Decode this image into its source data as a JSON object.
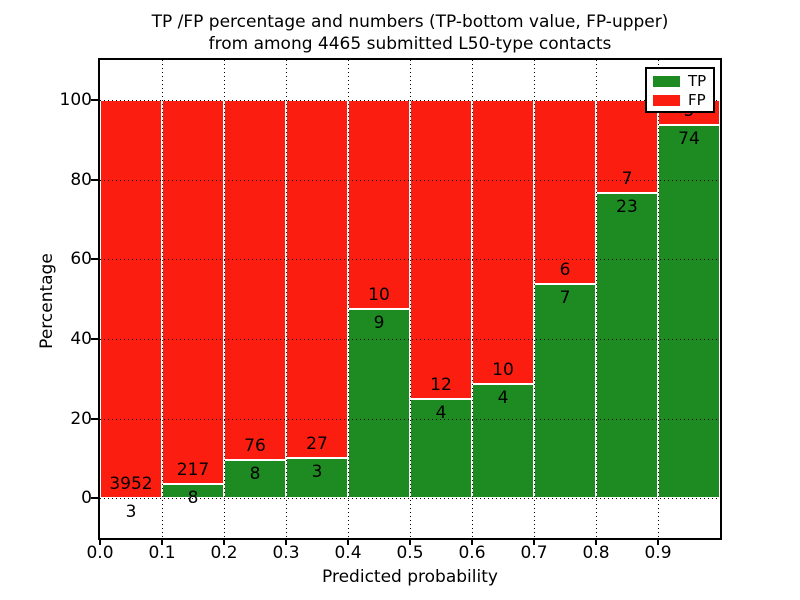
{
  "figure": {
    "title_line1": "TP /FP percentage and numbers (TP-bottom value, FP-upper)",
    "title_line2": "from among 4465 submitted L50-type contacts"
  },
  "chart_data": {
    "type": "bar",
    "variant": "stacked-percentage-histogram",
    "title": "TP /FP percentage and numbers (TP-bottom value, FP-upper) from among 4465 submitted L50-type contacts",
    "xlabel": "Predicted probability",
    "ylabel": "Percentage",
    "total_submitted": 4465,
    "xlim": [
      0.0,
      1.0
    ],
    "ylim": [
      -10,
      110
    ],
    "xticks": [
      "0.0",
      "0.1",
      "0.2",
      "0.3",
      "0.4",
      "0.5",
      "0.6",
      "0.7",
      "0.8",
      "0.9"
    ],
    "yticks": [
      "0",
      "20",
      "40",
      "60",
      "80",
      "100"
    ],
    "ytick_values": [
      0,
      20,
      40,
      60,
      80,
      100
    ],
    "grid": {
      "style": "dotted",
      "color": "#000000",
      "on": true
    },
    "bin_width": 0.1,
    "bin_starts": [
      0.0,
      0.1,
      0.2,
      0.3,
      0.4,
      0.5,
      0.6,
      0.7,
      0.8,
      0.9
    ],
    "series": [
      {
        "name": "TP",
        "color": "#1e8b22",
        "values": [
          3,
          8,
          8,
          3,
          9,
          4,
          4,
          7,
          23,
          74
        ]
      },
      {
        "name": "FP",
        "color": "#fb1d10",
        "values": [
          3952,
          217,
          76,
          27,
          10,
          12,
          10,
          6,
          7,
          5
        ]
      }
    ],
    "tp_percent_depicted": [
      0.08,
      3.56,
      9.52,
      10.0,
      47.37,
      25.0,
      28.57,
      53.85,
      76.67,
      93.67
    ],
    "annotation_rule": "FP count above stack boundary, TP count below stack boundary",
    "legend": {
      "position": "upper right",
      "entries": [
        "TP",
        "FP"
      ]
    }
  },
  "colors": {
    "background": "#ffffff",
    "tp_green": "#1e8b22",
    "fp_red": "#fb1d10",
    "bar_edge": "#ffffff",
    "grid": "#000000",
    "text": "#000000"
  }
}
